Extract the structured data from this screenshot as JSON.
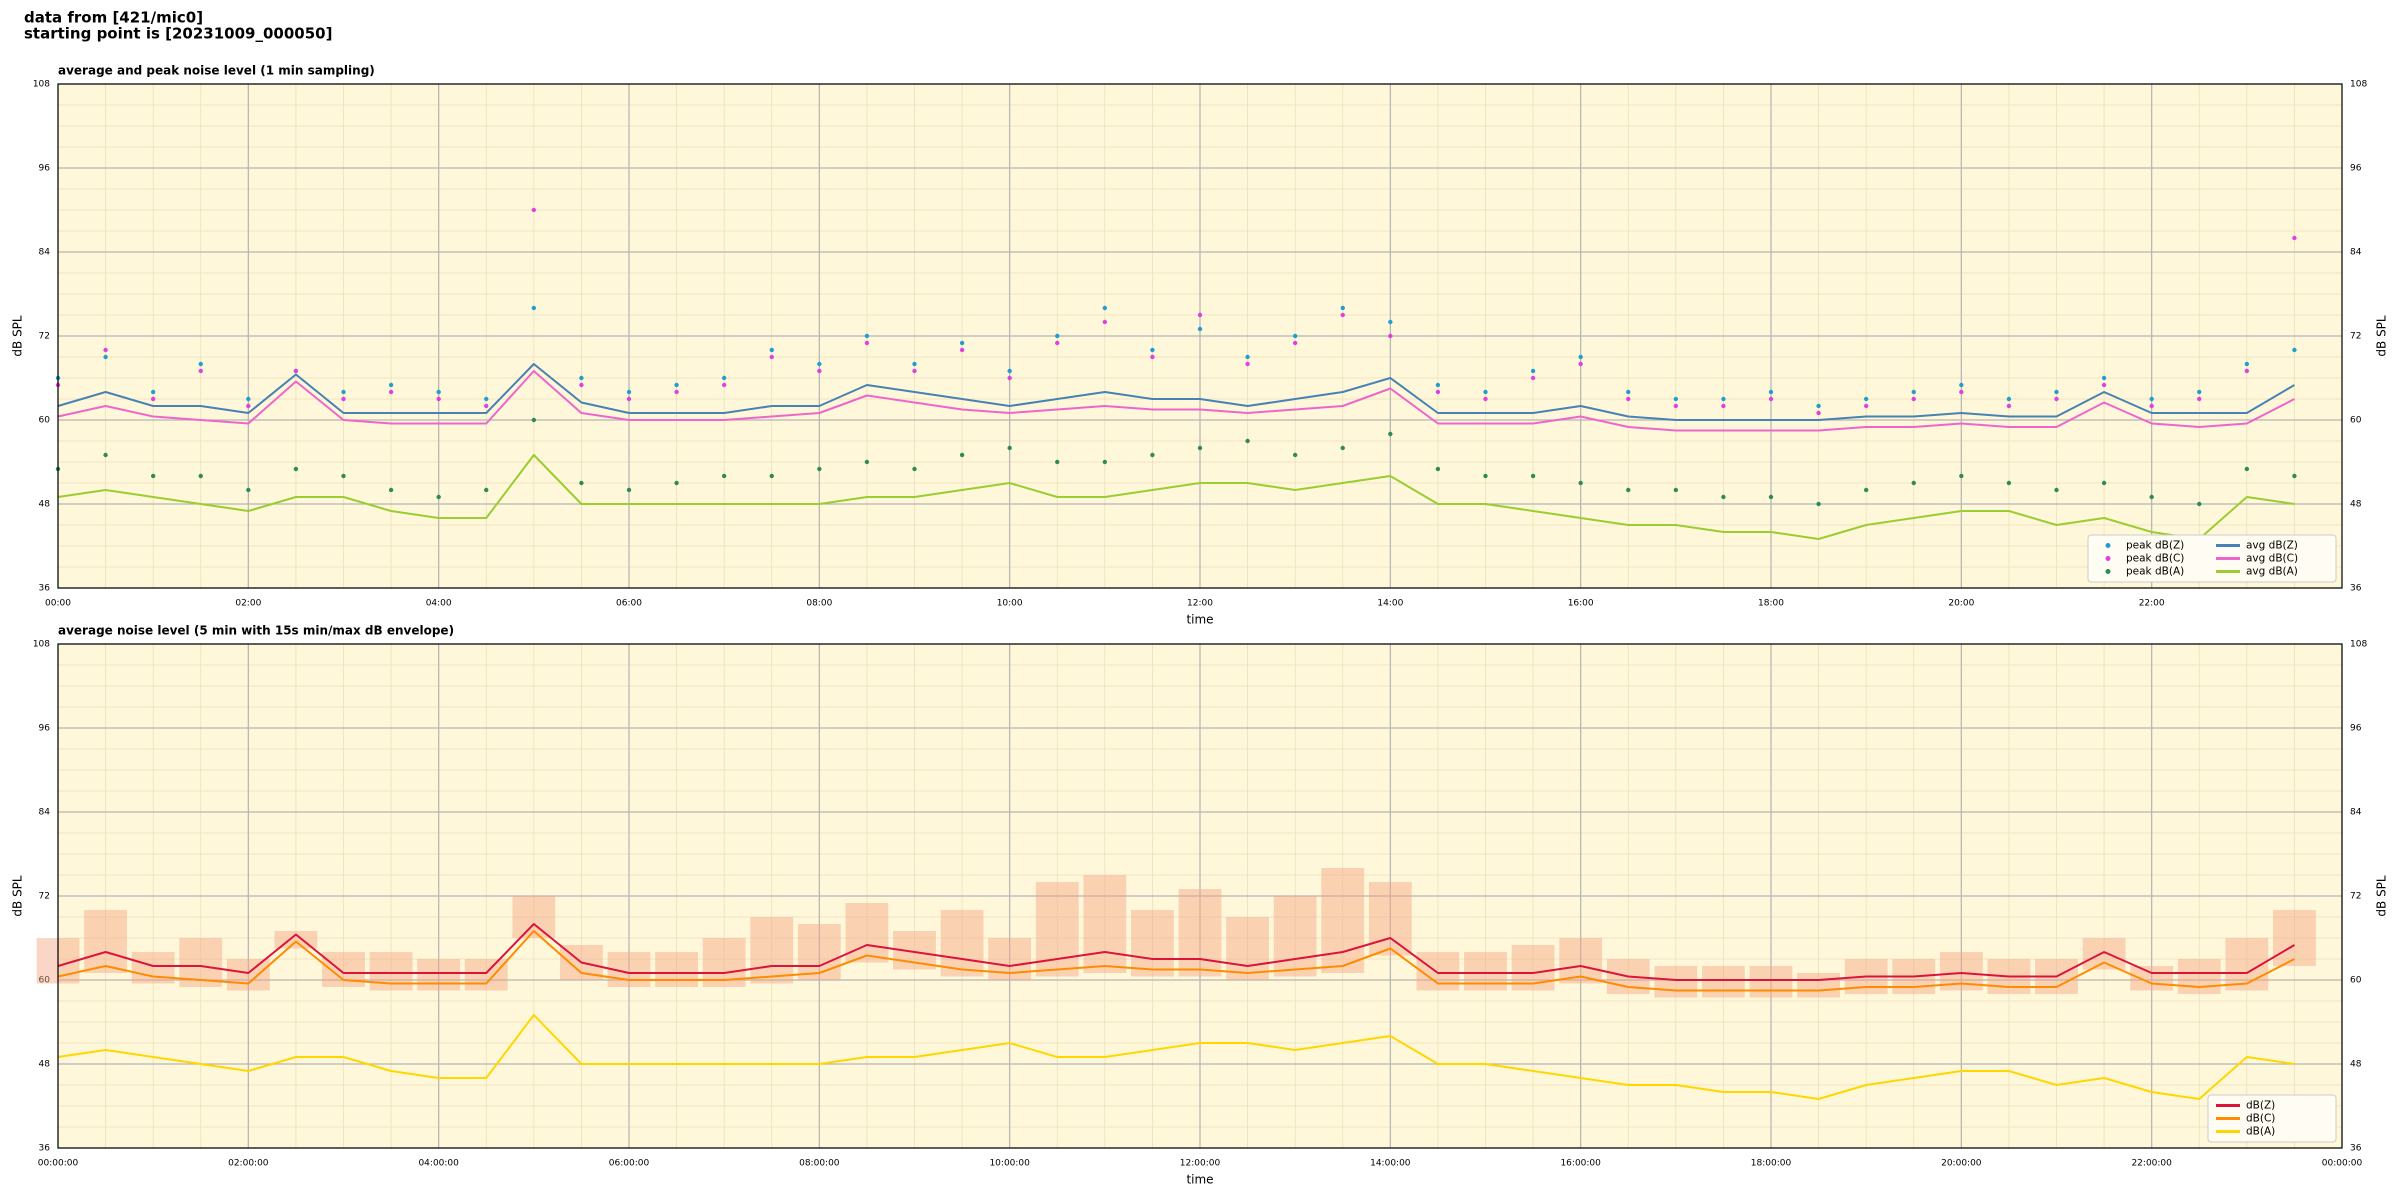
{
  "header": [
    "data from [421/mic0]",
    "starting point is [20231009_000050]"
  ],
  "chart_data": [
    {
      "type": "line",
      "title": "average and peak noise level (1 min sampling)",
      "xlabel": "time",
      "ylabel": "dB SPL",
      "x": [
        0,
        30,
        60,
        90,
        120,
        150,
        180,
        210,
        240,
        270,
        300,
        330,
        360,
        390,
        420,
        450,
        480,
        510,
        540,
        570,
        600,
        630,
        660,
        690,
        720,
        750,
        780,
        810,
        840,
        870,
        900,
        930,
        960,
        990,
        1020,
        1050,
        1080,
        1110,
        1140,
        1170,
        1200,
        1230,
        1260,
        1290,
        1320,
        1350,
        1380,
        1410
      ],
      "xlim": [
        0,
        1440
      ],
      "xticks": [
        {
          "value": 0,
          "label": "00:00"
        },
        {
          "value": 120,
          "label": "02:00"
        },
        {
          "value": 240,
          "label": "04:00"
        },
        {
          "value": 360,
          "label": "06:00"
        },
        {
          "value": 480,
          "label": "08:00"
        },
        {
          "value": 600,
          "label": "10:00"
        },
        {
          "value": 720,
          "label": "12:00"
        },
        {
          "value": 840,
          "label": "14:00"
        },
        {
          "value": 960,
          "label": "16:00"
        },
        {
          "value": 1080,
          "label": "18:00"
        },
        {
          "value": 1200,
          "label": "20:00"
        },
        {
          "value": 1320,
          "label": "22:00"
        }
      ],
      "ylim": [
        36,
        108
      ],
      "yticks": [
        36,
        48,
        60,
        72,
        84,
        96,
        108
      ],
      "grid": true,
      "legend": "lower right",
      "legend_columns": 2,
      "series": [
        {
          "name": "peak dB(Z)",
          "style": "scatter",
          "color": "#1f9fd0",
          "values": [
            66,
            69,
            64,
            68,
            63,
            67,
            64,
            65,
            64,
            63,
            76,
            66,
            64,
            65,
            66,
            70,
            68,
            72,
            68,
            71,
            67,
            72,
            76,
            70,
            73,
            69,
            72,
            76,
            74,
            65,
            64,
            67,
            69,
            64,
            63,
            63,
            64,
            62,
            63,
            64,
            65,
            63,
            64,
            66,
            63,
            64,
            68,
            70
          ]
        },
        {
          "name": "peak dB(C)",
          "style": "scatter",
          "color": "#e040e0",
          "values": [
            65,
            70,
            63,
            67,
            62,
            67,
            63,
            64,
            63,
            62,
            90,
            65,
            63,
            64,
            65,
            69,
            67,
            71,
            67,
            70,
            66,
            71,
            74,
            69,
            75,
            68,
            71,
            75,
            72,
            64,
            63,
            66,
            68,
            63,
            62,
            62,
            63,
            61,
            62,
            63,
            64,
            62,
            63,
            65,
            62,
            63,
            67,
            86
          ]
        },
        {
          "name": "peak dB(A)",
          "style": "scatter",
          "color": "#2e8b57",
          "values": [
            53,
            55,
            52,
            52,
            50,
            53,
            52,
            50,
            49,
            50,
            60,
            51,
            50,
            51,
            52,
            52,
            53,
            54,
            53,
            55,
            56,
            54,
            54,
            55,
            56,
            57,
            55,
            56,
            58,
            53,
            52,
            52,
            51,
            50,
            50,
            49,
            49,
            48,
            50,
            51,
            52,
            51,
            50,
            51,
            49,
            48,
            53,
            52
          ]
        },
        {
          "name": "avg dB(Z)",
          "style": "line",
          "color": "#4682b4",
          "values": [
            62,
            64,
            62,
            62,
            61,
            66.5,
            61,
            61,
            61,
            61,
            68,
            62.5,
            61,
            61,
            61,
            62,
            62,
            65,
            64,
            63,
            62,
            63,
            64,
            63,
            63,
            62,
            63,
            64,
            66,
            61,
            61,
            61,
            62,
            60.5,
            60,
            60,
            60,
            60,
            60.5,
            60.5,
            61,
            60.5,
            60.5,
            64,
            61,
            61,
            61,
            65
          ]
        },
        {
          "name": "avg dB(C)",
          "style": "line",
          "color": "#ee66cc",
          "values": [
            60.5,
            62,
            60.5,
            60,
            59.5,
            65.5,
            60,
            59.5,
            59.5,
            59.5,
            67,
            61,
            60,
            60,
            60,
            60.5,
            61,
            63.5,
            62.5,
            61.5,
            61,
            61.5,
            62,
            61.5,
            61.5,
            61,
            61.5,
            62,
            64.5,
            59.5,
            59.5,
            59.5,
            60.5,
            59,
            58.5,
            58.5,
            58.5,
            58.5,
            59,
            59,
            59.5,
            59,
            59,
            62.5,
            59.5,
            59,
            59.5,
            63
          ]
        },
        {
          "name": "avg dB(A)",
          "style": "line",
          "color": "#9acd32",
          "values": [
            49,
            50,
            49,
            48,
            47,
            49,
            49,
            47,
            46,
            46,
            55,
            48,
            48,
            48,
            48,
            48,
            48,
            49,
            49,
            50,
            51,
            49,
            49,
            50,
            51,
            51,
            50,
            51,
            52,
            48,
            48,
            47,
            46,
            45,
            45,
            44,
            44,
            43,
            45,
            46,
            47,
            47,
            45,
            46,
            44,
            43,
            49,
            48
          ]
        }
      ]
    },
    {
      "type": "line",
      "title": "average noise level (5 min with 15s min/max dB envelope)",
      "xlabel": "time",
      "ylabel": "dB SPL",
      "x": [
        0,
        30,
        60,
        90,
        120,
        150,
        180,
        210,
        240,
        270,
        300,
        330,
        360,
        390,
        420,
        450,
        480,
        510,
        540,
        570,
        600,
        630,
        660,
        690,
        720,
        750,
        780,
        810,
        840,
        870,
        900,
        930,
        960,
        990,
        1020,
        1050,
        1080,
        1110,
        1140,
        1170,
        1200,
        1230,
        1260,
        1290,
        1320,
        1350,
        1380,
        1410
      ],
      "xlim": [
        0,
        1440
      ],
      "xticks": [
        {
          "value": 0,
          "label": "00:00:00"
        },
        {
          "value": 120,
          "label": "02:00:00"
        },
        {
          "value": 240,
          "label": "04:00:00"
        },
        {
          "value": 360,
          "label": "06:00:00"
        },
        {
          "value": 480,
          "label": "08:00:00"
        },
        {
          "value": 600,
          "label": "10:00:00"
        },
        {
          "value": 720,
          "label": "12:00:00"
        },
        {
          "value": 840,
          "label": "14:00:00"
        },
        {
          "value": 960,
          "label": "16:00:00"
        },
        {
          "value": 1080,
          "label": "18:00:00"
        },
        {
          "value": 1200,
          "label": "20:00:00"
        },
        {
          "value": 1320,
          "label": "22:00:00"
        },
        {
          "value": 1440,
          "label": "00:00:00"
        }
      ],
      "ylim": [
        36,
        108
      ],
      "yticks": [
        36,
        48,
        60,
        72,
        84,
        96,
        108
      ],
      "grid": true,
      "legend": "lower right",
      "legend_columns": 1,
      "envelope": {
        "color": "#f4a582",
        "lower": [
          59.5,
          61,
          59.5,
          59,
          58.5,
          64.5,
          59,
          58.5,
          58.5,
          58.5,
          66,
          60,
          59,
          59,
          59,
          59.5,
          60,
          62.5,
          61.5,
          60.5,
          60,
          60.5,
          61,
          60.5,
          60.5,
          60,
          60.5,
          61,
          63.5,
          58.5,
          58.5,
          58.5,
          59.5,
          58,
          57.5,
          57.5,
          57.5,
          57.5,
          58,
          58,
          58.5,
          58,
          58,
          61.5,
          58.5,
          58,
          58.5,
          62
        ],
        "upper": [
          66,
          70,
          64,
          66,
          63,
          67,
          64,
          64,
          63,
          63,
          72,
          65,
          64,
          64,
          66,
          69,
          68,
          71,
          67,
          70,
          66,
          74,
          75,
          70,
          73,
          69,
          72,
          76,
          74,
          64,
          64,
          65,
          66,
          63,
          62,
          62,
          62,
          61,
          63,
          63,
          64,
          63,
          63,
          66,
          62,
          63,
          66,
          70
        ]
      },
      "series": [
        {
          "name": "dB(Z)",
          "style": "line",
          "color": "#dc143c",
          "values": [
            62,
            64,
            62,
            62,
            61,
            66.5,
            61,
            61,
            61,
            61,
            68,
            62.5,
            61,
            61,
            61,
            62,
            62,
            65,
            64,
            63,
            62,
            63,
            64,
            63,
            63,
            62,
            63,
            64,
            66,
            61,
            61,
            61,
            62,
            60.5,
            60,
            60,
            60,
            60,
            60.5,
            60.5,
            61,
            60.5,
            60.5,
            64,
            61,
            61,
            61,
            65
          ]
        },
        {
          "name": "dB(C)",
          "style": "line",
          "color": "#ff8c00",
          "values": [
            60.5,
            62,
            60.5,
            60,
            59.5,
            65.5,
            60,
            59.5,
            59.5,
            59.5,
            67,
            61,
            60,
            60,
            60,
            60.5,
            61,
            63.5,
            62.5,
            61.5,
            61,
            61.5,
            62,
            61.5,
            61.5,
            61,
            61.5,
            62,
            64.5,
            59.5,
            59.5,
            59.5,
            60.5,
            59,
            58.5,
            58.5,
            58.5,
            58.5,
            59,
            59,
            59.5,
            59,
            59,
            62.5,
            59.5,
            59,
            59.5,
            63
          ]
        },
        {
          "name": "dB(A)",
          "style": "line",
          "color": "#ffd700",
          "values": [
            49,
            50,
            49,
            48,
            47,
            49,
            49,
            47,
            46,
            46,
            55,
            48,
            48,
            48,
            48,
            48,
            48,
            49,
            49,
            50,
            51,
            49,
            49,
            50,
            51,
            51,
            50,
            51,
            52,
            48,
            48,
            47,
            46,
            45,
            45,
            44,
            44,
            43,
            45,
            46,
            47,
            47,
            45,
            46,
            44,
            43,
            49,
            48
          ]
        }
      ]
    }
  ]
}
